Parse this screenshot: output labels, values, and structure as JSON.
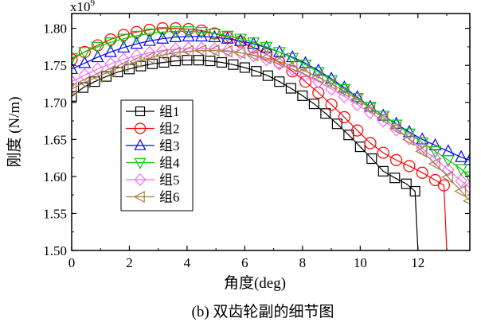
{
  "chart_data": {
    "type": "line",
    "xlabel": "角度(deg)",
    "ylabel": "刚度 (N/m)",
    "y_multiplier_label": "x10",
    "y_multiplier_exponent": "9",
    "caption": "(b)  双齿轮副的细节图",
    "xlim": [
      0,
      13.8
    ],
    "ylim": [
      1.5,
      1.82
    ],
    "x_ticks": [
      0,
      2,
      4,
      6,
      8,
      10,
      12
    ],
    "y_ticks": [
      1.5,
      1.55,
      1.6,
      1.65,
      1.7,
      1.75,
      1.8
    ],
    "x_tick_labels": [
      "0",
      "2",
      "4",
      "6",
      "8",
      "10",
      "12"
    ],
    "y_tick_labels": [
      "1.50",
      "1.55",
      "1.60",
      "1.65",
      "1.70",
      "1.75",
      "1.80"
    ],
    "grid": false,
    "legend_position": "left",
    "series": [
      {
        "name": "组1",
        "color": "#000000",
        "marker": "square",
        "x": [
          0.0,
          0.4,
          0.8,
          1.2,
          1.6,
          2.0,
          2.4,
          2.8,
          3.2,
          3.6,
          4.0,
          4.4,
          4.8,
          5.2,
          5.6,
          6.0,
          6.4,
          6.8,
          7.2,
          7.6,
          8.0,
          8.4,
          8.8,
          9.2,
          9.6,
          10.0,
          10.4,
          10.8,
          11.2,
          11.6,
          11.9,
          12.0
        ],
        "y": [
          1.708,
          1.72,
          1.728,
          1.735,
          1.741,
          1.745,
          1.749,
          1.752,
          1.754,
          1.756,
          1.757,
          1.757,
          1.756,
          1.754,
          1.751,
          1.747,
          1.742,
          1.736,
          1.728,
          1.719,
          1.709,
          1.698,
          1.685,
          1.671,
          1.656,
          1.64,
          1.624,
          1.607,
          1.598,
          1.59,
          1.58,
          1.5
        ]
      },
      {
        "name": "组2",
        "color": "#ff0000",
        "marker": "circle",
        "x": [
          0.0,
          0.45,
          0.9,
          1.35,
          1.8,
          2.25,
          2.7,
          3.15,
          3.6,
          4.05,
          4.5,
          4.95,
          5.4,
          5.85,
          6.3,
          6.75,
          7.2,
          7.65,
          8.1,
          8.55,
          9.0,
          9.45,
          9.9,
          10.35,
          10.8,
          11.25,
          11.7,
          12.15,
          12.6,
          12.9,
          13.0
        ],
        "y": [
          1.758,
          1.768,
          1.777,
          1.785,
          1.791,
          1.795,
          1.798,
          1.8,
          1.8,
          1.799,
          1.797,
          1.793,
          1.788,
          1.782,
          1.774,
          1.765,
          1.754,
          1.742,
          1.728,
          1.713,
          1.697,
          1.68,
          1.662,
          1.645,
          1.632,
          1.622,
          1.614,
          1.605,
          1.595,
          1.588,
          1.5
        ]
      },
      {
        "name": "组3",
        "color": "#0000ff",
        "marker": "triangle-up",
        "x": [
          0.0,
          0.45,
          0.9,
          1.35,
          1.8,
          2.25,
          2.7,
          3.15,
          3.6,
          4.05,
          4.5,
          4.95,
          5.4,
          5.85,
          6.3,
          6.75,
          7.2,
          7.65,
          8.1,
          8.55,
          9.0,
          9.45,
          9.9,
          10.35,
          10.8,
          11.25,
          11.7,
          12.15,
          12.6,
          13.05,
          13.5,
          13.8
        ],
        "y": [
          1.745,
          1.753,
          1.761,
          1.768,
          1.774,
          1.779,
          1.783,
          1.786,
          1.788,
          1.789,
          1.789,
          1.788,
          1.786,
          1.783,
          1.779,
          1.774,
          1.768,
          1.761,
          1.753,
          1.743,
          1.732,
          1.72,
          1.707,
          1.694,
          1.682,
          1.671,
          1.66,
          1.65,
          1.642,
          1.634,
          1.626,
          1.622
        ]
      },
      {
        "name": "组4",
        "color": "#00cc00",
        "marker": "triangle-down",
        "x": [
          0.0,
          0.45,
          0.9,
          1.35,
          1.8,
          2.25,
          2.7,
          3.15,
          3.6,
          4.05,
          4.5,
          4.95,
          5.4,
          5.85,
          6.3,
          6.75,
          7.2,
          7.65,
          8.1,
          8.55,
          9.0,
          9.45,
          9.9,
          10.35,
          10.8,
          11.25,
          11.7,
          12.15,
          12.6,
          13.05,
          13.5,
          13.8
        ],
        "y": [
          1.76,
          1.768,
          1.775,
          1.781,
          1.786,
          1.79,
          1.793,
          1.795,
          1.796,
          1.796,
          1.795,
          1.793,
          1.79,
          1.786,
          1.781,
          1.775,
          1.768,
          1.76,
          1.751,
          1.741,
          1.73,
          1.718,
          1.706,
          1.694,
          1.682,
          1.67,
          1.658,
          1.646,
          1.634,
          1.622,
          1.61,
          1.6
        ]
      },
      {
        "name": "组5",
        "color": "#ff66ff",
        "marker": "diamond",
        "x": [
          0.0,
          0.45,
          0.9,
          1.35,
          1.8,
          2.25,
          2.7,
          3.15,
          3.6,
          4.05,
          4.5,
          4.95,
          5.4,
          5.85,
          6.3,
          6.75,
          7.2,
          7.65,
          8.1,
          8.55,
          9.0,
          9.45,
          9.9,
          10.35,
          10.8,
          11.25,
          11.7,
          12.15,
          12.6,
          13.05,
          13.5,
          13.8
        ],
        "y": [
          1.728,
          1.737,
          1.745,
          1.752,
          1.758,
          1.763,
          1.767,
          1.77,
          1.772,
          1.773,
          1.773,
          1.772,
          1.77,
          1.767,
          1.763,
          1.758,
          1.752,
          1.745,
          1.737,
          1.728,
          1.718,
          1.708,
          1.697,
          1.686,
          1.675,
          1.663,
          1.651,
          1.638,
          1.624,
          1.609,
          1.594,
          1.585
        ]
      },
      {
        "name": "组6",
        "color": "#a08040",
        "marker": "triangle-left",
        "x": [
          0.0,
          0.45,
          0.9,
          1.35,
          1.8,
          2.25,
          2.7,
          3.15,
          3.6,
          4.05,
          4.5,
          4.95,
          5.4,
          5.85,
          6.3,
          6.75,
          7.2,
          7.65,
          8.1,
          8.55,
          9.0,
          9.45,
          9.9,
          10.35,
          10.8,
          11.25,
          11.7,
          12.15,
          12.6,
          13.05,
          13.5,
          13.8
        ],
        "y": [
          1.718,
          1.727,
          1.735,
          1.742,
          1.749,
          1.755,
          1.76,
          1.764,
          1.767,
          1.769,
          1.77,
          1.77,
          1.769,
          1.767,
          1.764,
          1.76,
          1.755,
          1.749,
          1.742,
          1.734,
          1.725,
          1.715,
          1.704,
          1.692,
          1.679,
          1.665,
          1.65,
          1.634,
          1.617,
          1.599,
          1.58,
          1.567
        ]
      }
    ]
  }
}
